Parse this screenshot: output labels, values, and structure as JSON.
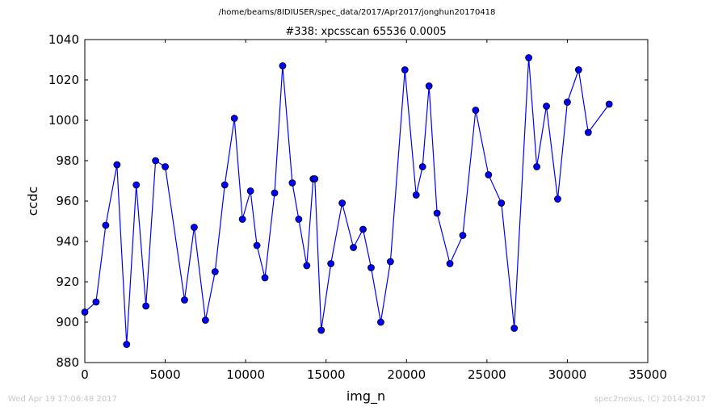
{
  "footer": {
    "timestamp": "Wed Apr 19 17:06:48 2017",
    "credit": "spec2nexus, (C) 2014-2017"
  },
  "chart_data": {
    "type": "line",
    "suptitle": "/home/beams/8IDIUSER/spec_data/2017/Apr2017/jonghun20170418",
    "title": "#338: xpcsscan 65536 0.0005",
    "xlabel": "img_n",
    "ylabel": "ccdc",
    "xlim": [
      0,
      35000
    ],
    "ylim": [
      880,
      1040
    ],
    "xticks": [
      0,
      5000,
      10000,
      15000,
      20000,
      25000,
      30000,
      35000
    ],
    "yticks": [
      880,
      900,
      920,
      940,
      960,
      980,
      1000,
      1020,
      1040
    ],
    "grid": false,
    "legend": "none",
    "line_color": "#0000ff",
    "marker_color": "#0000ff",
    "marker": "circle",
    "series": [
      {
        "x": [
          0,
          700,
          1300,
          2000,
          2600,
          3200,
          3800,
          4400,
          5000,
          6200,
          6800,
          7500,
          8100,
          8700,
          9300,
          9800,
          10300,
          10700,
          11200,
          11800,
          12300,
          12900,
          13300,
          13800,
          14200,
          14300,
          14700,
          15300,
          16000,
          16700,
          17300,
          17800,
          18400,
          19000,
          19900,
          20600,
          21000,
          21400,
          21900,
          22700,
          23500,
          24300,
          25100,
          25900,
          26700,
          27600,
          28100,
          28700,
          29400,
          30000,
          30700,
          31300,
          32600
        ],
        "y": [
          905,
          910,
          948,
          978,
          889,
          968,
          908,
          980,
          977,
          911,
          947,
          901,
          925,
          968,
          1001,
          951,
          965,
          938,
          922,
          964,
          1027,
          969,
          951,
          928,
          971,
          971,
          896,
          929,
          959,
          937,
          946,
          927,
          900,
          930,
          1025,
          963,
          977,
          1017,
          954,
          929,
          943,
          1005,
          973,
          959,
          897,
          1031,
          977,
          1007,
          961,
          1009,
          1025,
          994,
          1008
        ]
      }
    ]
  }
}
